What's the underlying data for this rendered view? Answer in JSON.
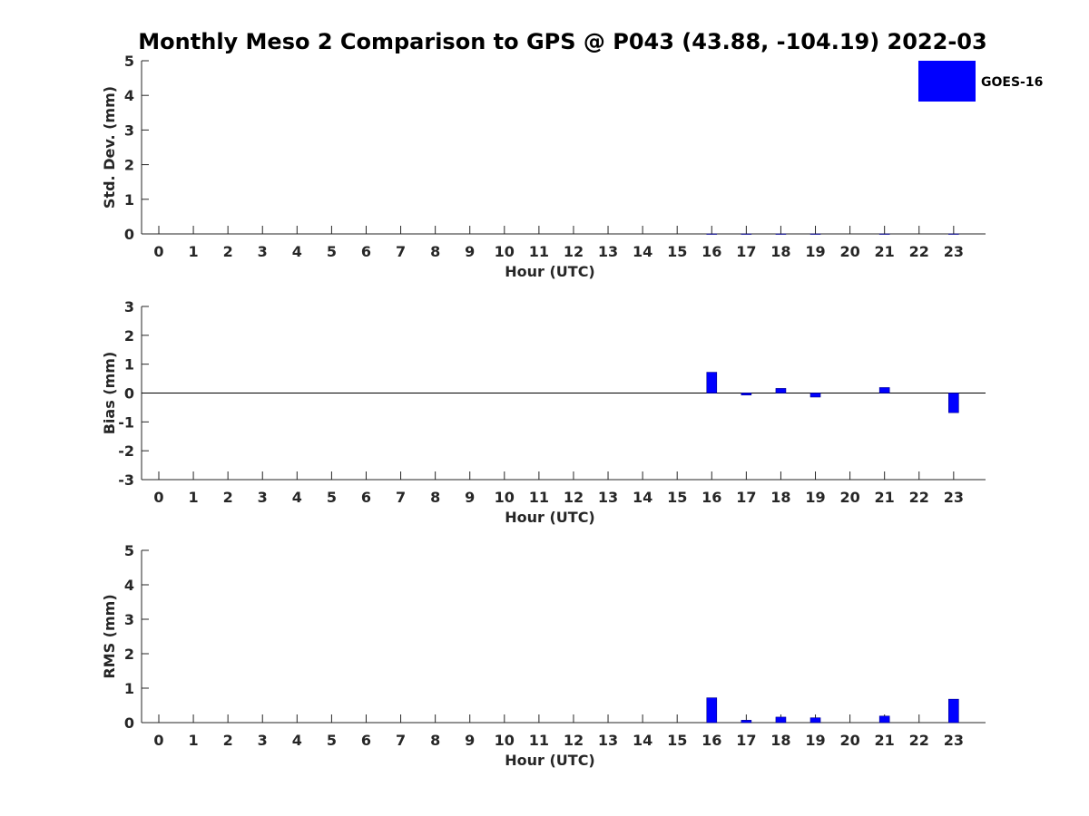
{
  "title": "Monthly Meso 2 Comparison to GPS @ P043 (43.88, -104.19) 2022-03",
  "legend": {
    "label": "GOES-16",
    "color": "#0000ff"
  },
  "chart_data": [
    {
      "type": "bar",
      "ylabel": "Std. Dev. (mm)",
      "xlabel": "Hour (UTC)",
      "ylim": [
        0,
        5
      ],
      "yticks": [
        "0",
        "1",
        "2",
        "3",
        "4",
        "5"
      ],
      "categories": [
        "0",
        "1",
        "2",
        "3",
        "4",
        "5",
        "6",
        "7",
        "8",
        "9",
        "10",
        "11",
        "12",
        "13",
        "14",
        "15",
        "16",
        "17",
        "18",
        "19",
        "20",
        "21",
        "22",
        "23"
      ],
      "series": [
        {
          "name": "GOES-16",
          "color": "#0000ff",
          "values": [
            null,
            null,
            null,
            null,
            null,
            null,
            null,
            null,
            null,
            null,
            null,
            null,
            null,
            null,
            null,
            null,
            0,
            0,
            0,
            0,
            null,
            0,
            null,
            0
          ]
        }
      ],
      "zero_line": false
    },
    {
      "type": "bar",
      "ylabel": "Bias (mm)",
      "xlabel": "Hour (UTC)",
      "ylim": [
        -3,
        3
      ],
      "yticks": [
        "-3",
        "-2",
        "-1",
        "0",
        "1",
        "2",
        "3"
      ],
      "categories": [
        "0",
        "1",
        "2",
        "3",
        "4",
        "5",
        "6",
        "7",
        "8",
        "9",
        "10",
        "11",
        "12",
        "13",
        "14",
        "15",
        "16",
        "17",
        "18",
        "19",
        "20",
        "21",
        "22",
        "23"
      ],
      "series": [
        {
          "name": "GOES-16",
          "color": "#0000ff",
          "values": [
            null,
            null,
            null,
            null,
            null,
            null,
            null,
            null,
            null,
            null,
            null,
            null,
            null,
            null,
            null,
            null,
            0.72,
            -0.07,
            0.16,
            -0.14,
            null,
            0.19,
            null,
            -0.68
          ]
        }
      ],
      "zero_line": true
    },
    {
      "type": "bar",
      "ylabel": "RMS (mm)",
      "xlabel": "Hour (UTC)",
      "ylim": [
        0,
        5
      ],
      "yticks": [
        "0",
        "1",
        "2",
        "3",
        "4",
        "5"
      ],
      "categories": [
        "0",
        "1",
        "2",
        "3",
        "4",
        "5",
        "6",
        "7",
        "8",
        "9",
        "10",
        "11",
        "12",
        "13",
        "14",
        "15",
        "16",
        "17",
        "18",
        "19",
        "20",
        "21",
        "22",
        "23"
      ],
      "series": [
        {
          "name": "GOES-16",
          "color": "#0000ff",
          "values": [
            null,
            null,
            null,
            null,
            null,
            null,
            null,
            null,
            null,
            null,
            null,
            null,
            null,
            null,
            null,
            null,
            0.72,
            0.07,
            0.16,
            0.14,
            null,
            0.19,
            null,
            0.68
          ]
        }
      ],
      "zero_line": false
    }
  ]
}
